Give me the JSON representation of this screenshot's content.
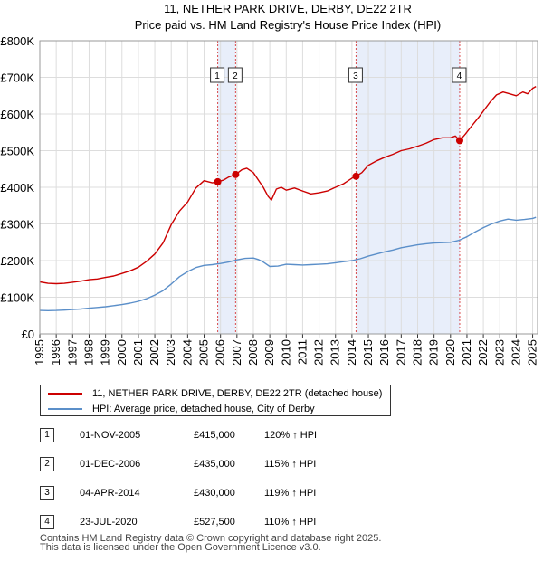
{
  "chart_data": {
    "type": "line",
    "title": "11, NETHER PARK DRIVE, DERBY, DE22 2TR",
    "subtitle": "Price paid vs. HM Land Registry's House Price Index (HPI)",
    "xlim": [
      1995,
      2025.3
    ],
    "ylim": [
      0,
      800000
    ],
    "x_ticks": [
      "1995",
      "1996",
      "1997",
      "1998",
      "1999",
      "2000",
      "2001",
      "2002",
      "2003",
      "2004",
      "2005",
      "2006",
      "2007",
      "2008",
      "2009",
      "2010",
      "2011",
      "2012",
      "2013",
      "2014",
      "2015",
      "2016",
      "2017",
      "2018",
      "2019",
      "2020",
      "2021",
      "2022",
      "2023",
      "2024",
      "2025"
    ],
    "y_ticks": [
      {
        "value": 0,
        "label": "£0"
      },
      {
        "value": 100000,
        "label": "£100K"
      },
      {
        "value": 200000,
        "label": "£200K"
      },
      {
        "value": 300000,
        "label": "£300K"
      },
      {
        "value": 400000,
        "label": "£400K"
      },
      {
        "value": 500000,
        "label": "£500K"
      },
      {
        "value": 600000,
        "label": "£600K"
      },
      {
        "value": 700000,
        "label": "£700K"
      },
      {
        "value": 800000,
        "label": "£800K"
      }
    ],
    "shaded_ranges": [
      [
        2005.83,
        2006.92
      ],
      [
        2014.25,
        2020.56
      ]
    ],
    "series": [
      {
        "name": "11, NETHER PARK DRIVE, DERBY, DE22 2TR (detached house)",
        "color": "#cc0000",
        "x": [
          1995.0,
          1995.5,
          1996.0,
          1996.5,
          1997.0,
          1997.5,
          1998.0,
          1998.5,
          1999.0,
          1999.5,
          2000.0,
          2000.5,
          2001.0,
          2001.5,
          2002.0,
          2002.5,
          2003.0,
          2003.5,
          2004.0,
          2004.5,
          2005.0,
          2005.5,
          2005.83,
          2006.2,
          2006.5,
          2006.92,
          2007.3,
          2007.6,
          2008.0,
          2008.3,
          2008.6,
          2008.9,
          2009.1,
          2009.4,
          2009.7,
          2010.0,
          2010.5,
          2011.0,
          2011.5,
          2012.0,
          2012.5,
          2013.0,
          2013.5,
          2014.0,
          2014.25,
          2014.6,
          2015.0,
          2015.5,
          2016.0,
          2016.5,
          2017.0,
          2017.5,
          2018.0,
          2018.5,
          2019.0,
          2019.5,
          2020.0,
          2020.3,
          2020.56,
          2020.9,
          2021.3,
          2021.7,
          2022.0,
          2022.4,
          2022.8,
          2023.2,
          2023.6,
          2024.0,
          2024.4,
          2024.7,
          2025.0,
          2025.2
        ],
        "y": [
          142000,
          138000,
          137000,
          138000,
          141000,
          144000,
          148000,
          150000,
          154000,
          158000,
          165000,
          172000,
          182000,
          198000,
          218000,
          248000,
          298000,
          335000,
          360000,
          398000,
          418000,
          412000,
          415000,
          420000,
          428000,
          435000,
          448000,
          452000,
          440000,
          420000,
          400000,
          375000,
          365000,
          395000,
          400000,
          392000,
          398000,
          390000,
          382000,
          385000,
          390000,
          400000,
          410000,
          425000,
          430000,
          440000,
          460000,
          472000,
          482000,
          490000,
          500000,
          505000,
          512000,
          520000,
          530000,
          535000,
          535000,
          540000,
          527500,
          545000,
          568000,
          590000,
          608000,
          632000,
          652000,
          660000,
          655000,
          650000,
          660000,
          655000,
          670000,
          675000
        ]
      },
      {
        "name": "HPI: Average price, detached house, City of Derby",
        "color": "#5b8fc9",
        "x": [
          1995.0,
          1995.5,
          1996.0,
          1996.5,
          1997.0,
          1997.5,
          1998.0,
          1998.5,
          1999.0,
          1999.5,
          2000.0,
          2000.5,
          2001.0,
          2001.5,
          2002.0,
          2002.5,
          2003.0,
          2003.5,
          2004.0,
          2004.5,
          2005.0,
          2005.5,
          2006.0,
          2006.5,
          2007.0,
          2007.5,
          2008.0,
          2008.3,
          2008.6,
          2009.0,
          2009.5,
          2010.0,
          2010.5,
          2011.0,
          2011.5,
          2012.0,
          2012.5,
          2013.0,
          2013.5,
          2014.0,
          2014.5,
          2015.0,
          2015.5,
          2016.0,
          2016.5,
          2017.0,
          2017.5,
          2018.0,
          2018.5,
          2019.0,
          2019.5,
          2020.0,
          2020.5,
          2021.0,
          2021.5,
          2022.0,
          2022.5,
          2023.0,
          2023.5,
          2024.0,
          2024.5,
          2025.0,
          2025.2
        ],
        "y": [
          64000,
          63500,
          64000,
          65000,
          66500,
          68000,
          70000,
          72000,
          74000,
          77000,
          80000,
          84000,
          89000,
          96000,
          106000,
          118000,
          136000,
          156000,
          170000,
          181000,
          187000,
          189000,
          192000,
          196000,
          202000,
          206000,
          207000,
          203000,
          196000,
          184000,
          185000,
          190000,
          189000,
          188000,
          189000,
          190000,
          191000,
          194000,
          197000,
          200000,
          205000,
          212000,
          218000,
          224000,
          229000,
          235000,
          239000,
          243000,
          246000,
          248000,
          249000,
          250000,
          255000,
          265000,
          278000,
          290000,
          300000,
          308000,
          313000,
          310000,
          312000,
          315000,
          318000
        ]
      }
    ],
    "markers": [
      {
        "id": "1",
        "x": 2005.83,
        "y": 415000
      },
      {
        "id": "2",
        "x": 2006.92,
        "y": 435000
      },
      {
        "id": "3",
        "x": 2014.25,
        "y": 430000
      },
      {
        "id": "4",
        "x": 2020.56,
        "y": 527500
      }
    ],
    "legend": {
      "placement": "bottom"
    }
  },
  "legend": {
    "property_label": "11, NETHER PARK DRIVE, DERBY, DE22 2TR (detached house)",
    "hpi_label": "HPI: Average price, detached house, City of Derby"
  },
  "sales": [
    {
      "id": "1",
      "date": "01-NOV-2005",
      "price": "£415,000",
      "hpi_change": "120% ↑ HPI"
    },
    {
      "id": "2",
      "date": "01-DEC-2006",
      "price": "£435,000",
      "hpi_change": "115% ↑ HPI"
    },
    {
      "id": "3",
      "date": "04-APR-2014",
      "price": "£430,000",
      "hpi_change": "119% ↑ HPI"
    },
    {
      "id": "4",
      "date": "23-JUL-2020",
      "price": "£527,500",
      "hpi_change": "110% ↑ HPI"
    }
  ],
  "footer": {
    "line1": "Contains HM Land Registry data © Crown copyright and database right 2025.",
    "line2": "This data is licensed under the Open Government Licence v3.0."
  },
  "colors": {
    "property_line": "#cc0000",
    "hpi_line": "#5b8fc9",
    "shade": "#e8eefa",
    "marker_line": "#cc0000"
  }
}
